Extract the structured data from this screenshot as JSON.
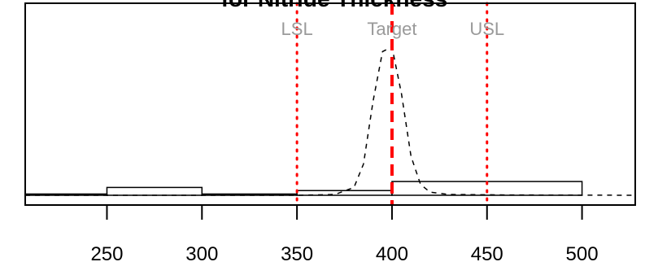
{
  "chart_data": {
    "type": "histogram",
    "title": "for Nitride Thickness",
    "xlabel": "",
    "ylabel": "",
    "xlim": [
      207,
      528
    ],
    "x_ticks": [
      250,
      300,
      350,
      400,
      450,
      500
    ],
    "x_tick_labels": [
      "250",
      "300",
      "350",
      "400",
      "450",
      "500"
    ],
    "grid": false,
    "legend": "none",
    "bins": [
      {
        "from": 200,
        "to": 250,
        "height": 0.008
      },
      {
        "from": 250,
        "to": 300,
        "height": 0.05
      },
      {
        "from": 300,
        "to": 350,
        "height": 0.008
      },
      {
        "from": 350,
        "to": 400,
        "height": 0.03
      },
      {
        "from": 400,
        "to": 500,
        "height": 0.088
      }
    ],
    "y_max": 1.0,
    "density_curve": {
      "style": "dashed",
      "x": [
        207,
        300,
        350,
        370,
        380,
        385,
        390,
        395,
        400,
        405,
        410,
        415,
        420,
        430,
        460,
        528
      ],
      "y": [
        0.0,
        0.0,
        0.0,
        0.005,
        0.05,
        0.2,
        0.6,
        0.92,
        0.95,
        0.65,
        0.25,
        0.07,
        0.02,
        0.005,
        0.002,
        0.0
      ]
    },
    "spec_lines": [
      {
        "label": "LSL",
        "value": 350,
        "color": "#ff0000",
        "style": "dotted"
      },
      {
        "label": "Target",
        "value": 400,
        "color": "#ff0000",
        "style": "dashed"
      },
      {
        "label": "USL",
        "value": 450,
        "color": "#ff0000",
        "style": "dotted"
      }
    ]
  }
}
